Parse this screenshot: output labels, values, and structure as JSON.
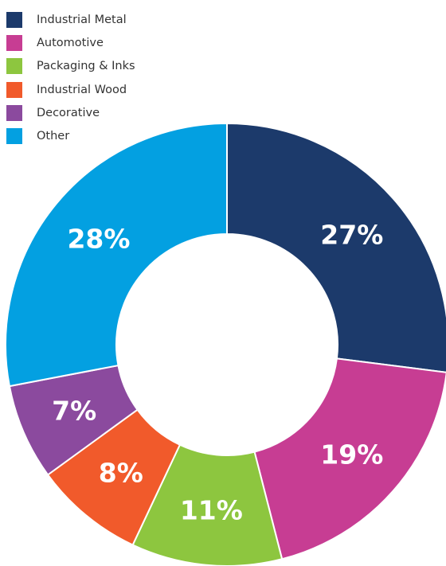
{
  "chart_data": {
    "type": "pie",
    "donut": true,
    "legend_position": "top-left",
    "slices": [
      {
        "label": "Industrial Metal",
        "value": 27,
        "value_label": "27%",
        "color": "#1c3a6b"
      },
      {
        "label": "Automotive",
        "value": 19,
        "value_label": "19%",
        "color": "#c73d93"
      },
      {
        "label": "Packaging & Inks",
        "value": 11,
        "value_label": "11%",
        "color": "#8dc63f"
      },
      {
        "label": "Industrial Wood",
        "value": 8,
        "value_label": "8%",
        "color": "#f15a2b"
      },
      {
        "label": "Decorative",
        "value": 7,
        "value_label": "7%",
        "color": "#8b4a9e"
      },
      {
        "label": "Other",
        "value": 28,
        "value_label": "28%",
        "color": "#03a0e1"
      }
    ]
  }
}
